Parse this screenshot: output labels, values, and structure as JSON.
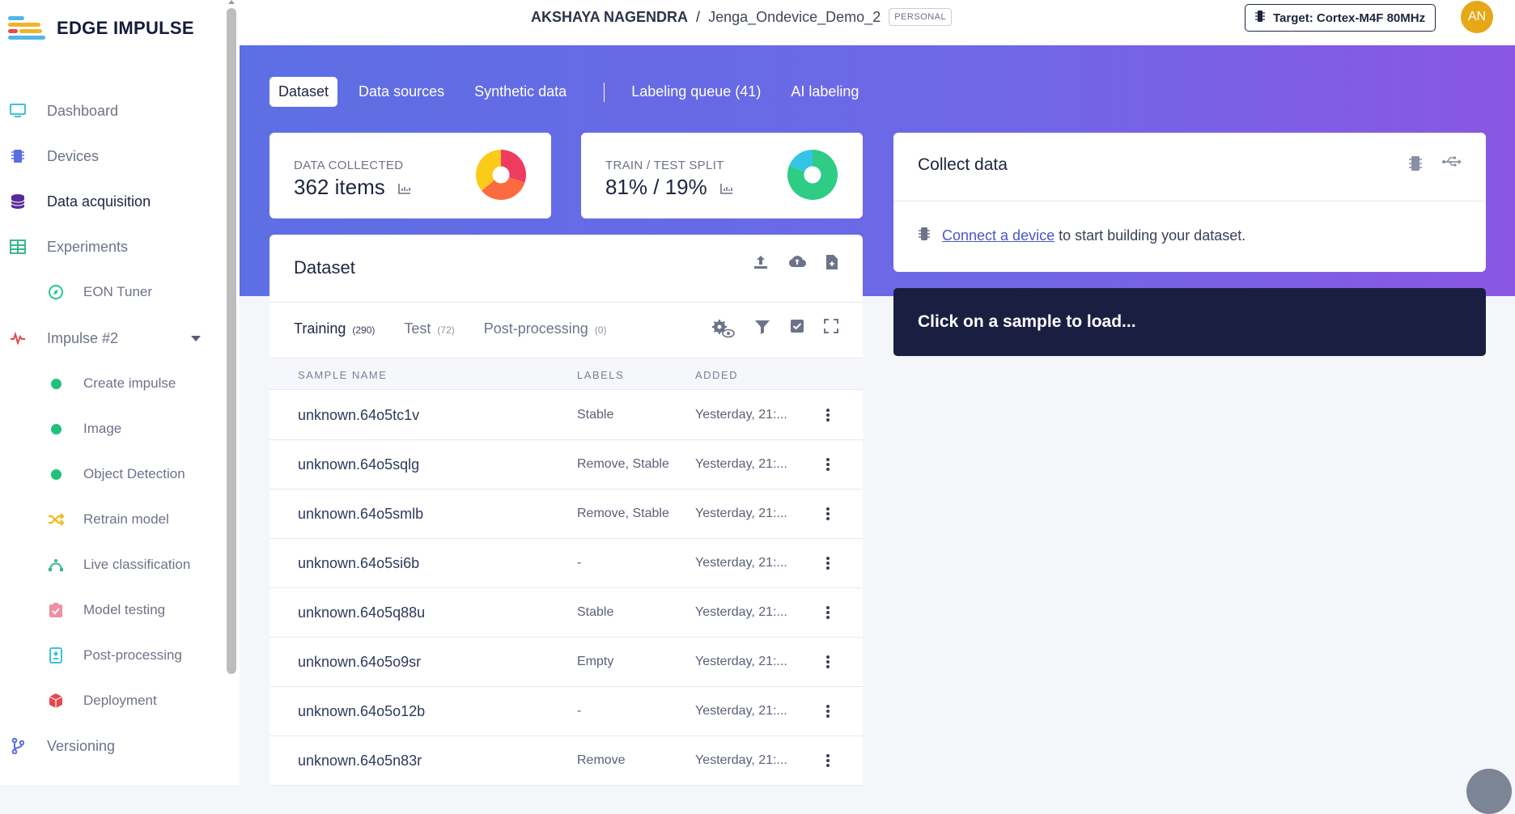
{
  "brand": {
    "name": "EDGE IMPULSE"
  },
  "sidebar": {
    "items": [
      {
        "label": "Dashboard",
        "icon": "monitor-icon"
      },
      {
        "label": "Devices",
        "icon": "chip-icon"
      },
      {
        "label": "Data acquisition",
        "icon": "database-icon"
      },
      {
        "label": "Experiments",
        "icon": "table-icon"
      },
      {
        "label": "EON Tuner",
        "icon": "compass-icon"
      },
      {
        "label": "Impulse #2",
        "icon": "pulse-icon"
      },
      {
        "label": "Create impulse",
        "icon": "green-dot-icon"
      },
      {
        "label": "Image",
        "icon": "green-dot-icon"
      },
      {
        "label": "Object Detection",
        "icon": "green-dot-icon"
      },
      {
        "label": "Retrain model",
        "icon": "shuffle-icon"
      },
      {
        "label": "Live classification",
        "icon": "bezier-icon"
      },
      {
        "label": "Model testing",
        "icon": "clipboard-check-icon"
      },
      {
        "label": "Post-processing",
        "icon": "badge-icon"
      },
      {
        "label": "Deployment",
        "icon": "cube-icon"
      },
      {
        "label": "Versioning",
        "icon": "branch-icon"
      }
    ]
  },
  "header": {
    "user": "AKSHAYA NAGENDRA",
    "separator": "/",
    "project": "Jenga_Ondevice_Demo_2",
    "badge": "PERSONAL",
    "target": "Target: Cortex-M4F 80MHz",
    "avatar": "AN"
  },
  "tabs": [
    {
      "label": "Dataset"
    },
    {
      "label": "Data sources"
    },
    {
      "label": "Synthetic data"
    },
    {
      "label": "Labeling queue (41)"
    },
    {
      "label": "AI labeling"
    }
  ],
  "stats": {
    "collected": {
      "label": "DATA COLLECTED",
      "value": "362 items"
    },
    "split": {
      "label": "TRAIN / TEST SPLIT",
      "value": "81% / 19%"
    }
  },
  "dataset": {
    "title": "Dataset",
    "subtabs": [
      {
        "label": "Training",
        "count": "(290)"
      },
      {
        "label": "Test",
        "count": "(72)"
      },
      {
        "label": "Post-processing",
        "count": "(0)"
      }
    ],
    "columns": [
      "SAMPLE NAME",
      "LABELS",
      "ADDED"
    ],
    "rows": [
      {
        "name": "unknown.64o5tc1v",
        "labels": "Stable",
        "added": "Yesterday, 21:..."
      },
      {
        "name": "unknown.64o5sqlg",
        "labels": "Remove, Stable",
        "added": "Yesterday, 21:..."
      },
      {
        "name": "unknown.64o5smlb",
        "labels": "Remove, Stable",
        "added": "Yesterday, 21:..."
      },
      {
        "name": "unknown.64o5si6b",
        "labels": "-",
        "added": "Yesterday, 21:..."
      },
      {
        "name": "unknown.64o5q88u",
        "labels": "Stable",
        "added": "Yesterday, 21:..."
      },
      {
        "name": "unknown.64o5o9sr",
        "labels": "Empty",
        "added": "Yesterday, 21:..."
      },
      {
        "name": "unknown.64o5o12b",
        "labels": "-",
        "added": "Yesterday, 21:..."
      },
      {
        "name": "unknown.64o5n83r",
        "labels": "Remove",
        "added": "Yesterday, 21:..."
      }
    ]
  },
  "collect": {
    "title": "Collect data",
    "link": "Connect a device",
    "text": "to start building your dataset."
  },
  "sample_prompt": "Click on a sample to load...",
  "colors": {
    "accent": "#5d6fe4",
    "accent_end": "#8a57e2",
    "dark": "#1a1f42",
    "green": "#21c17b"
  }
}
